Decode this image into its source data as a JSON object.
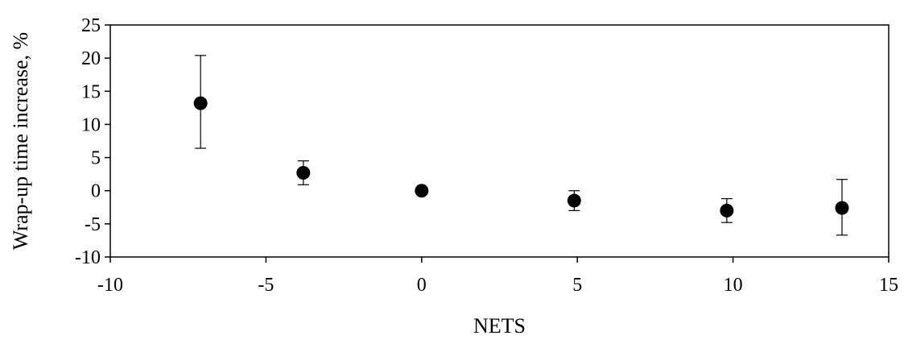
{
  "chart_data": {
    "type": "scatter",
    "title": "",
    "xlabel": "NETS",
    "ylabel": "Wrap-up time increase, %",
    "xlim": [
      -10,
      15
    ],
    "ylim": [
      -10,
      25
    ],
    "xticks": [
      -10,
      -5,
      0,
      5,
      10,
      15
    ],
    "yticks": [
      -10,
      -5,
      0,
      5,
      10,
      15,
      20,
      25
    ],
    "grid": false,
    "legend": "none",
    "marker_color": "#000000",
    "points": [
      {
        "x": -7.1,
        "y": 13.2,
        "err_low": 6.4,
        "err_high": 20.4
      },
      {
        "x": -3.8,
        "y": 2.7,
        "err_low": 0.9,
        "err_high": 4.5
      },
      {
        "x": 0.0,
        "y": 0.0,
        "err_low": 0.0,
        "err_high": 0.0
      },
      {
        "x": 4.9,
        "y": -1.5,
        "err_low": -3.0,
        "err_high": 0.0
      },
      {
        "x": 9.8,
        "y": -3.0,
        "err_low": -4.8,
        "err_high": -1.2
      },
      {
        "x": 13.5,
        "y": -2.6,
        "err_low": -6.7,
        "err_high": 1.7
      }
    ]
  }
}
